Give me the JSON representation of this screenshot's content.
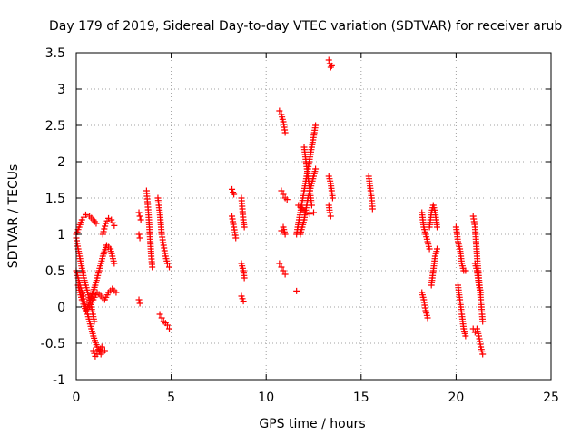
{
  "chart_data": {
    "type": "scatter",
    "title": "Day 179 of 2019, Sidereal Day-to-day VTEC variation (SDTVAR) for receiver arub",
    "xlabel": "GPS time / hours",
    "ylabel": "SDTVAR / TECUs",
    "xlim": [
      0,
      25
    ],
    "ylim": [
      -1,
      3.5
    ],
    "xticks": [
      "0",
      "5",
      "10",
      "15",
      "20",
      "25"
    ],
    "yticks": [
      "-1",
      "-0.5",
      "0",
      "0.5",
      "1",
      "1.5",
      "2",
      "2.5",
      "3",
      "3.5"
    ],
    "grid": true,
    "marker": "+",
    "series_color": "#ff0000",
    "segments": [
      {
        "x": [
          0.0,
          0.15,
          0.3,
          0.5,
          0.7,
          0.9,
          1.05
        ],
        "y": [
          1.0,
          1.1,
          1.2,
          1.27,
          1.25,
          1.2,
          1.15
        ]
      },
      {
        "x": [
          0.0,
          0.1,
          0.25,
          0.4,
          0.6,
          0.8,
          0.95
        ],
        "y": [
          0.95,
          0.8,
          0.6,
          0.4,
          0.2,
          0.0,
          -0.2
        ]
      },
      {
        "x": [
          0.0,
          0.1,
          0.2,
          0.35,
          0.5,
          0.7,
          0.9,
          1.1,
          1.3,
          1.5
        ],
        "y": [
          0.5,
          0.4,
          0.3,
          0.15,
          0.0,
          -0.2,
          -0.4,
          -0.55,
          -0.65,
          -0.6
        ]
      },
      {
        "x": [
          0.1,
          0.3,
          0.5,
          0.7,
          0.9,
          1.1,
          1.3,
          1.5,
          1.7,
          1.9,
          2.1
        ],
        "y": [
          0.3,
          0.1,
          -0.05,
          0.0,
          0.1,
          0.2,
          0.15,
          0.1,
          0.2,
          0.25,
          0.2
        ]
      },
      {
        "x": [
          0.6,
          0.8,
          1.0,
          1.2,
          1.4,
          1.6,
          1.8,
          2.0
        ],
        "y": [
          0.0,
          0.15,
          0.3,
          0.5,
          0.7,
          0.85,
          0.8,
          0.6
        ]
      },
      {
        "x": [
          0.9,
          1.0,
          1.1,
          1.2,
          1.35
        ],
        "y": [
          -0.6,
          -0.68,
          -0.65,
          -0.6,
          -0.55
        ]
      },
      {
        "x": [
          1.4,
          1.55,
          1.7,
          1.85,
          2.0
        ],
        "y": [
          1.0,
          1.15,
          1.22,
          1.2,
          1.12
        ]
      },
      {
        "x": [
          3.3,
          3.35,
          3.4
        ],
        "y": [
          1.3,
          1.25,
          1.2
        ]
      },
      {
        "x": [
          3.3,
          3.35
        ],
        "y": [
          1.0,
          0.95
        ]
      },
      {
        "x": [
          3.3,
          3.35
        ],
        "y": [
          0.1,
          0.05
        ]
      },
      {
        "x": [
          3.7,
          3.75,
          3.8,
          3.85,
          3.9,
          3.95,
          4.0
        ],
        "y": [
          1.6,
          1.45,
          1.3,
          1.1,
          0.9,
          0.7,
          0.55
        ]
      },
      {
        "x": [
          4.3,
          4.4,
          4.5,
          4.6,
          4.7,
          4.8,
          4.9
        ],
        "y": [
          1.5,
          1.3,
          1.0,
          0.85,
          0.7,
          0.6,
          0.55
        ]
      },
      {
        "x": [
          4.4,
          4.5,
          4.6,
          4.7,
          4.8,
          4.9
        ],
        "y": [
          -0.1,
          -0.15,
          -0.2,
          -0.22,
          -0.25,
          -0.3
        ]
      },
      {
        "x": [
          8.2,
          8.25,
          8.3
        ],
        "y": [
          1.62,
          1.58,
          1.55
        ]
      },
      {
        "x": [
          8.2,
          8.3,
          8.4
        ],
        "y": [
          1.25,
          1.1,
          0.95
        ]
      },
      {
        "x": [
          8.7,
          8.75,
          8.8,
          8.85
        ],
        "y": [
          1.5,
          1.35,
          1.2,
          1.1
        ]
      },
      {
        "x": [
          8.7,
          8.8,
          8.85
        ],
        "y": [
          0.6,
          0.5,
          0.4
        ]
      },
      {
        "x": [
          8.7,
          8.8
        ],
        "y": [
          0.15,
          0.08
        ]
      },
      {
        "x": [
          10.7,
          10.8,
          10.9,
          11.0
        ],
        "y": [
          2.7,
          2.65,
          2.55,
          2.4
        ]
      },
      {
        "x": [
          10.8,
          10.9,
          11.0,
          11.1
        ],
        "y": [
          1.6,
          1.55,
          1.5,
          1.48
        ]
      },
      {
        "x": [
          10.7,
          10.8,
          10.9,
          11.0
        ],
        "y": [
          0.6,
          0.55,
          0.5,
          0.45
        ]
      },
      {
        "x": [
          10.8,
          10.9,
          11.0
        ],
        "y": [
          1.05,
          1.1,
          1.0
        ]
      },
      {
        "x": [
          11.6
        ],
        "y": [
          0.22
        ]
      },
      {
        "x": [
          11.6,
          11.8,
          12.0,
          12.2,
          12.4,
          12.6
        ],
        "y": [
          1.0,
          1.3,
          1.6,
          1.9,
          2.2,
          2.5
        ]
      },
      {
        "x": [
          11.7,
          11.9,
          12.1,
          12.3,
          12.5
        ],
        "y": [
          1.4,
          1.35,
          1.3,
          1.28,
          1.3
        ]
      },
      {
        "x": [
          12.0,
          12.1,
          12.2,
          12.3,
          12.4
        ],
        "y": [
          2.2,
          2.0,
          1.8,
          1.6,
          1.4
        ]
      },
      {
        "x": [
          11.8,
          12.0,
          12.2,
          12.4,
          12.6
        ],
        "y": [
          1.0,
          1.2,
          1.5,
          1.7,
          1.9
        ]
      },
      {
        "x": [
          13.3,
          13.35,
          13.4,
          13.45
        ],
        "y": [
          3.4,
          3.35,
          3.3,
          3.32
        ]
      },
      {
        "x": [
          13.3,
          13.4,
          13.5
        ],
        "y": [
          1.8,
          1.7,
          1.5
        ]
      },
      {
        "x": [
          13.3,
          13.35,
          13.4
        ],
        "y": [
          1.4,
          1.3,
          1.25
        ]
      },
      {
        "x": [
          15.4,
          15.45,
          15.5,
          15.55,
          15.6
        ],
        "y": [
          1.8,
          1.7,
          1.6,
          1.5,
          1.35
        ]
      },
      {
        "x": [
          18.2,
          18.3,
          18.4,
          18.5
        ],
        "y": [
          0.2,
          0.1,
          -0.05,
          -0.15
        ]
      },
      {
        "x": [
          18.2,
          18.3,
          18.4,
          18.5,
          18.6
        ],
        "y": [
          1.3,
          1.1,
          1.0,
          0.9,
          0.8
        ]
      },
      {
        "x": [
          18.6,
          18.7,
          18.8,
          18.9,
          19.0
        ],
        "y": [
          1.1,
          1.3,
          1.4,
          1.3,
          1.1
        ]
      },
      {
        "x": [
          18.7,
          18.8,
          18.9,
          19.0
        ],
        "y": [
          0.3,
          0.5,
          0.7,
          0.8
        ]
      },
      {
        "x": [
          20.0,
          20.1,
          20.2,
          20.3,
          20.4,
          20.5
        ],
        "y": [
          1.1,
          0.9,
          0.8,
          0.6,
          0.5,
          0.5
        ]
      },
      {
        "x": [
          20.1,
          20.2,
          20.3,
          20.4,
          20.5
        ],
        "y": [
          0.3,
          0.1,
          -0.1,
          -0.3,
          -0.4
        ]
      },
      {
        "x": [
          20.9,
          21.0,
          21.1,
          21.2,
          21.3,
          21.4
        ],
        "y": [
          1.25,
          1.1,
          0.7,
          0.4,
          0.1,
          -0.2
        ]
      },
      {
        "x": [
          20.9,
          21.0,
          21.1,
          21.2,
          21.3,
          21.4
        ],
        "y": [
          -0.3,
          -0.35,
          -0.3,
          -0.4,
          -0.55,
          -0.65
        ]
      },
      {
        "x": [
          21.0,
          21.1,
          21.2,
          21.3
        ],
        "y": [
          0.6,
          0.5,
          0.3,
          0.2
        ]
      }
    ]
  }
}
